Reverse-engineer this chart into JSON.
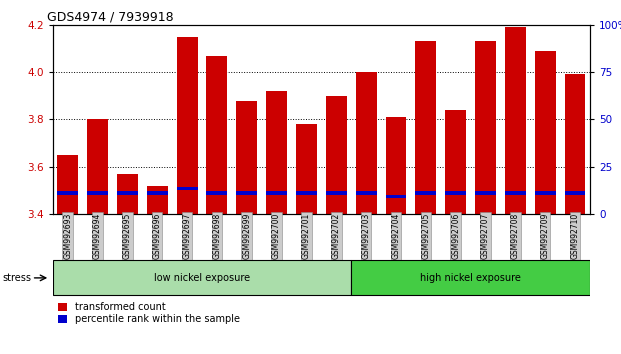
{
  "title": "GDS4974 / 7939918",
  "samples": [
    "GSM992693",
    "GSM992694",
    "GSM992695",
    "GSM992696",
    "GSM992697",
    "GSM992698",
    "GSM992699",
    "GSM992700",
    "GSM992701",
    "GSM992702",
    "GSM992703",
    "GSM992704",
    "GSM992705",
    "GSM992706",
    "GSM992707",
    "GSM992708",
    "GSM992709",
    "GSM992710"
  ],
  "transformed_count": [
    3.65,
    3.8,
    3.57,
    3.52,
    4.15,
    4.07,
    3.88,
    3.92,
    3.78,
    3.9,
    4.0,
    3.81,
    4.13,
    3.84,
    4.13,
    4.19,
    4.09,
    3.99
  ],
  "blue_bar_bottom": [
    3.482,
    3.482,
    3.482,
    3.482,
    3.5,
    3.482,
    3.482,
    3.482,
    3.482,
    3.482,
    3.482,
    3.468,
    3.482,
    3.482,
    3.482,
    3.482,
    3.482,
    3.482
  ],
  "blue_bar_height": [
    0.014,
    0.014,
    0.014,
    0.014,
    0.014,
    0.014,
    0.014,
    0.014,
    0.014,
    0.014,
    0.014,
    0.014,
    0.014,
    0.014,
    0.014,
    0.014,
    0.014,
    0.014
  ],
  "ymin": 3.4,
  "ymax": 4.2,
  "yticks_left": [
    3.4,
    3.6,
    3.8,
    4.0,
    4.2
  ],
  "yticks_right": [
    0,
    25,
    50,
    75,
    100
  ],
  "bar_color": "#cc0000",
  "blue_color": "#0000cc",
  "bg_color": "#ffffff",
  "plot_bg": "#ffffff",
  "low_nickel_count": 10,
  "low_nickel_label": "low nickel exposure",
  "high_nickel_label": "high nickel exposure",
  "low_nickel_color": "#aaddaa",
  "high_nickel_color": "#44cc44",
  "stress_label": "stress",
  "legend_red_label": "transformed count",
  "legend_blue_label": "percentile rank within the sample",
  "left_tick_color": "#cc0000",
  "right_tick_color": "#0000cc",
  "tick_label_bg": "#cccccc",
  "bar_width": 0.7
}
